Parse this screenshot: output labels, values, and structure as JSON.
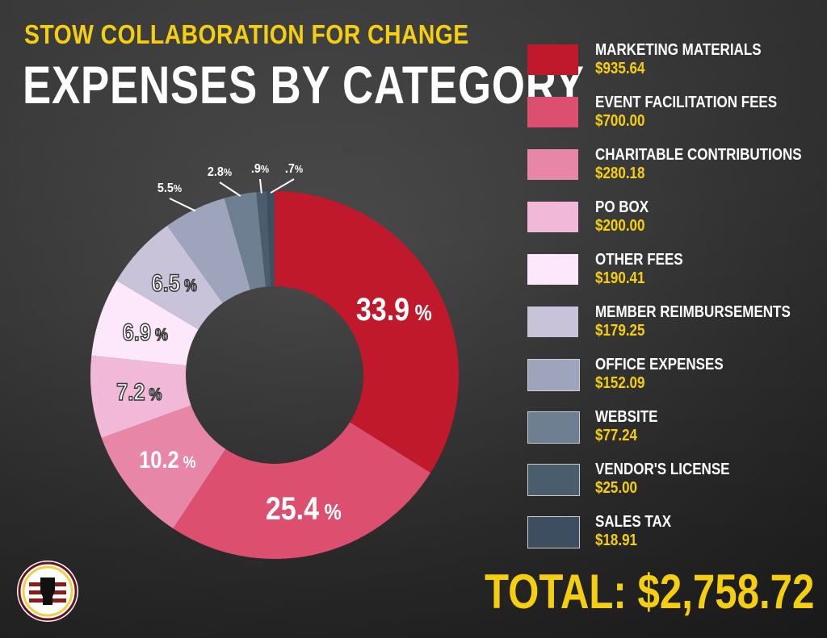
{
  "header": {
    "subtitle": "STOW COLLABORATION FOR CHANGE",
    "title": "EXPENSES BY CATEGORY"
  },
  "chart_data": {
    "type": "pie",
    "style": "donut",
    "title": "EXPENSES BY CATEGORY",
    "categories": [
      "MARKETING MATERIALS",
      "EVENT FACILITATION FEES",
      "CHARITABLE CONTRIBUTIONS",
      "PO BOX",
      "OTHER FEES",
      "MEMBER REIMBURSEMENTS",
      "OFFICE EXPENSES",
      "WEBSITE",
      "VENDOR'S LICENSE",
      "SALES TAX"
    ],
    "values": [
      935.64,
      700.0,
      280.18,
      200.0,
      190.41,
      179.25,
      152.09,
      77.24,
      25.0,
      18.91
    ],
    "value_labels": [
      "$935.64",
      "$700.00",
      "$280.18",
      "$200.00",
      "$190.41",
      "$179.25",
      "$152.09",
      "$77.24",
      "$25.00",
      "$18.91"
    ],
    "percent_labels": [
      "33.9",
      "25.4",
      "10.2",
      "7.2",
      "6.9",
      "6.5",
      "5.5",
      "2.8",
      ".9",
      ".7"
    ],
    "percent_sign": "%",
    "colors": [
      "#c0192c",
      "#dc4f6e",
      "#e886a8",
      "#f2b8d8",
      "#fde7fa",
      "#c9c3da",
      "#9ea4bc",
      "#6e7f92",
      "#4a5d6c",
      "#3c4e60"
    ],
    "legend_placement": "right",
    "total_label": "TOTAL: $2,758.72"
  }
}
